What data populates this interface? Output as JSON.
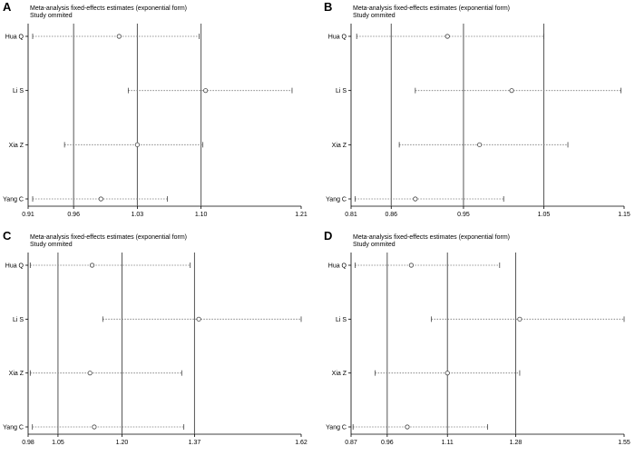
{
  "panels": [
    {
      "letter": "A"
    },
    {
      "letter": "B"
    },
    {
      "letter": "C"
    },
    {
      "letter": "D"
    }
  ],
  "chart_data": [
    {
      "type": "forest",
      "title": "Meta-analysis fixed-effects estimates (exponential form)",
      "subtitle": "Study ommited",
      "categories": [
        "Hua Q",
        "Li S",
        "Xia Z",
        "Yang C"
      ],
      "x_ticks": [
        0.91,
        0.96,
        1.03,
        1.1,
        1.21
      ],
      "x_tick_labels": [
        "0.91",
        "0.96",
        "1.03",
        "1.10",
        "1.21"
      ],
      "xlim": [
        0.91,
        1.21
      ],
      "reference_lines": [
        0.96,
        1.03,
        1.1
      ],
      "estimates": [
        1.01,
        1.105,
        1.03,
        0.99
      ],
      "lower": [
        0.915,
        1.02,
        0.95,
        0.915
      ],
      "upper": [
        1.098,
        1.2,
        1.102,
        1.063
      ]
    },
    {
      "type": "forest",
      "title": "Meta-analysis fixed-effects estimates (exponential form)",
      "subtitle": "Study ommited",
      "categories": [
        "Hua Q",
        "Li S",
        "Xia Z",
        "Yang C"
      ],
      "x_ticks": [
        0.81,
        0.86,
        0.95,
        1.05,
        1.15
      ],
      "x_tick_labels": [
        "0.81",
        "0.86",
        "0.95",
        "1.05",
        "1.15"
      ],
      "xlim": [
        0.81,
        1.15
      ],
      "reference_lines": [
        0.86,
        0.95,
        1.05
      ],
      "estimates": [
        0.93,
        1.01,
        0.97,
        0.89
      ],
      "lower": [
        0.817,
        0.89,
        0.87,
        0.815
      ],
      "upper": [
        1.05,
        1.146,
        1.08,
        1.0
      ]
    },
    {
      "type": "forest",
      "title": "Meta-analysis fixed-effects estimates (exponential form)",
      "subtitle": "Study ommited",
      "categories": [
        "Hua Q",
        "Li S",
        "Xia Z",
        "Yang C"
      ],
      "x_ticks": [
        0.98,
        1.05,
        1.2,
        1.37,
        1.62
      ],
      "x_tick_labels": [
        "0.98",
        "1.05",
        "1.20",
        "1.37",
        "1.62"
      ],
      "xlim": [
        0.98,
        1.62
      ],
      "reference_lines": [
        1.05,
        1.2,
        1.37
      ],
      "estimates": [
        1.13,
        1.38,
        1.125,
        1.135
      ],
      "lower": [
        0.985,
        1.155,
        0.985,
        0.99
      ],
      "upper": [
        1.36,
        1.62,
        1.34,
        1.345
      ]
    },
    {
      "type": "forest",
      "title": "Meta-analysis fixed-effects estimates (exponential form)",
      "subtitle": "Study ommited",
      "categories": [
        "Hua Q",
        "Li S",
        "Xia Z",
        "Yang C"
      ],
      "x_ticks": [
        0.87,
        0.96,
        1.11,
        1.28,
        1.55
      ],
      "x_tick_labels": [
        "0.87",
        "0.96",
        "1.11",
        "1.28",
        "1.55"
      ],
      "xlim": [
        0.87,
        1.55
      ],
      "reference_lines": [
        0.96,
        1.11,
        1.28
      ],
      "estimates": [
        1.02,
        1.29,
        1.11,
        1.01
      ],
      "lower": [
        0.88,
        1.07,
        0.93,
        0.875
      ],
      "upper": [
        1.24,
        1.55,
        1.29,
        1.21
      ]
    }
  ]
}
